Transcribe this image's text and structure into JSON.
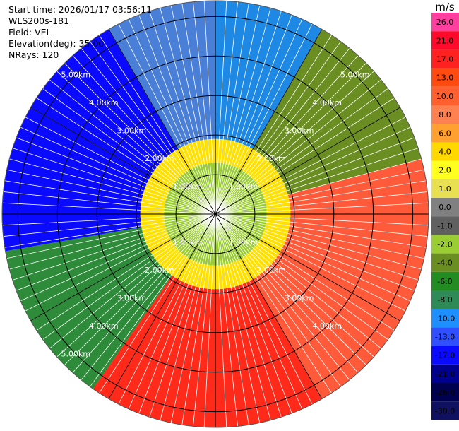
{
  "header": {
    "start_time": "Start time: 2026/01/17 03:56:11",
    "instrument": "WLS200s-181",
    "field": "Field: VEL",
    "elevation": "Elevation(deg): 35.00",
    "nrays": "NRays: 120"
  },
  "chart_data": {
    "type": "heatmap",
    "projection": "polar-ppi",
    "field": "VEL",
    "nrays": 120,
    "range_rings_km": [
      1.0,
      2.0,
      3.0,
      4.0,
      5.0
    ],
    "ring_labels": [
      {
        "text": "1.00km",
        "quadrant": "upper-left",
        "ring": 1
      },
      {
        "text": "2.00km",
        "quadrant": "upper-left",
        "ring": 2
      },
      {
        "text": "3.00km",
        "quadrant": "upper-left",
        "ring": 3
      },
      {
        "text": "4.00km",
        "quadrant": "upper-left",
        "ring": 4
      },
      {
        "text": "5.00km",
        "quadrant": "upper-left",
        "ring": 5
      },
      {
        "text": "1.00km",
        "quadrant": "upper-right",
        "ring": 1
      },
      {
        "text": "2.00km",
        "quadrant": "upper-right",
        "ring": 2
      },
      {
        "text": "3.00km",
        "quadrant": "upper-right",
        "ring": 3
      },
      {
        "text": "4.00km",
        "quadrant": "upper-right",
        "ring": 4
      },
      {
        "text": "5.00km",
        "quadrant": "upper-right",
        "ring": 5
      },
      {
        "text": "1.00km",
        "quadrant": "lower-left",
        "ring": 1
      },
      {
        "text": "2.00km",
        "quadrant": "lower-left",
        "ring": 2
      },
      {
        "text": "3.00km",
        "quadrant": "lower-left",
        "ring": 3
      },
      {
        "text": "4.00km",
        "quadrant": "lower-left",
        "ring": 4
      },
      {
        "text": "5.00km",
        "quadrant": "lower-left",
        "ring": 5
      },
      {
        "text": "1.00km",
        "quadrant": "lower-right",
        "ring": 1
      },
      {
        "text": "2.00km",
        "quadrant": "lower-right",
        "ring": 2
      },
      {
        "text": "3.00km",
        "quadrant": "lower-right",
        "ring": 3
      },
      {
        "text": "4.00km",
        "quadrant": "lower-right",
        "ring": 4
      }
    ],
    "sectors": [
      {
        "az_from": 0,
        "az_to": 30,
        "color": "#1e88e5"
      },
      {
        "az_from": 30,
        "az_to": 75,
        "color": "#6b8e23"
      },
      {
        "az_from": 75,
        "az_to": 150,
        "color": "#ff5a3a"
      },
      {
        "az_from": 150,
        "az_to": 215,
        "color": "#ff2a1a"
      },
      {
        "az_from": 215,
        "az_to": 260,
        "color": "#2e8b3a"
      },
      {
        "az_from": 260,
        "az_to": 330,
        "color": "#0a0aff"
      },
      {
        "az_from": 330,
        "az_to": 360,
        "color": "#4a7fd8"
      }
    ],
    "inner_zone": {
      "radius_km": 1.3,
      "color": "#9acd32"
    },
    "ring_zone": {
      "from_km": 1.3,
      "to_km": 1.9,
      "color": "#ffe000"
    },
    "colorbar": {
      "unit": "m/s",
      "ticks": [
        "26.0",
        "21.0",
        "17.0",
        "13.0",
        "10.0",
        "8.0",
        "6.0",
        "4.0",
        "2.0",
        "1.0",
        "0.0",
        "-1.0",
        "-2.0",
        "-4.0",
        "-6.0",
        "-8.0",
        "-10.0",
        "-13.0",
        "-17.0",
        "-21.0",
        "-26.0",
        "-30.0"
      ],
      "colors": [
        "#ff3fa0",
        "#ff0a2a",
        "#ff2020",
        "#ff4a10",
        "#ff6030",
        "#ff8050",
        "#ffa030",
        "#ffd800",
        "#ffff20",
        "#e8e050",
        "#808080",
        "#606060",
        "#9acd32",
        "#6b8e23",
        "#228b22",
        "#2e8b57",
        "#1e8fff",
        "#3050ff",
        "#0a0aff",
        "#000090",
        "#000050",
        "#101060"
      ]
    }
  }
}
